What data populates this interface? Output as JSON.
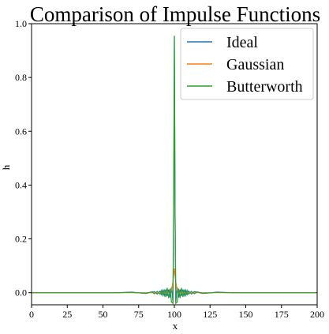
{
  "chart_data": {
    "type": "line",
    "title": "Comparison of Impulse Functions",
    "xlabel": "x",
    "ylabel": "h",
    "xlim": [
      0,
      200
    ],
    "ylim": [
      -0.045,
      1.0
    ],
    "xticks": [
      0,
      25,
      50,
      75,
      100,
      125,
      150,
      175,
      200
    ],
    "yticks": [
      0.0,
      0.2,
      0.4,
      0.6,
      0.8,
      1.0
    ],
    "xtick_labels": [
      "0",
      "25",
      "50",
      "75",
      "100",
      "125",
      "150",
      "175",
      "200"
    ],
    "ytick_labels": [
      "0.0",
      "0.2",
      "0.4",
      "0.6",
      "0.8",
      "1.0"
    ],
    "grid": false,
    "legend_position": "top-right",
    "series": [
      {
        "name": "Ideal",
        "color": "#1f77b4",
        "x": [
          0,
          60,
          70,
          80,
          86,
          88,
          90,
          91,
          92,
          93,
          94,
          95,
          96,
          97,
          98,
          99,
          99.5,
          100,
          100.5,
          101,
          102,
          103,
          104,
          105,
          106,
          107,
          108,
          109,
          110,
          112,
          114,
          120,
          130,
          140,
          200
        ],
        "y": [
          0,
          0,
          0.002,
          -0.003,
          0.004,
          -0.005,
          0.006,
          -0.007,
          0.009,
          -0.01,
          0.012,
          -0.012,
          0.012,
          -0.018,
          0.02,
          -0.035,
          0.3,
          0.955,
          0.3,
          -0.035,
          0.02,
          -0.018,
          0.012,
          -0.012,
          0.012,
          -0.01,
          0.009,
          -0.007,
          0.006,
          -0.005,
          0.004,
          -0.003,
          0.002,
          0,
          0
        ]
      },
      {
        "name": "Gaussian",
        "color": "#ff7f0e",
        "x": [
          0,
          95,
          97,
          98,
          99,
          100,
          101,
          102,
          103,
          105,
          200
        ],
        "y": [
          0,
          0,
          0.002,
          0.01,
          0.04,
          0.09,
          0.04,
          0.01,
          0.002,
          0,
          0
        ]
      },
      {
        "name": "Butterworth",
        "color": "#2ca02c",
        "x": [
          0,
          60,
          70,
          80,
          84,
          86,
          88,
          90,
          91,
          92,
          93,
          94,
          95,
          96,
          97,
          98,
          99,
          99.5,
          100,
          100.5,
          101,
          102,
          103,
          104,
          105,
          106,
          107,
          108,
          109,
          110,
          112,
          114,
          116,
          120,
          130,
          140,
          200
        ],
        "y": [
          0,
          0,
          0.001,
          -0.002,
          0.003,
          -0.004,
          0.005,
          -0.006,
          0.008,
          -0.01,
          0.012,
          -0.016,
          0.018,
          -0.02,
          0.015,
          -0.035,
          -0.04,
          0.3,
          0.955,
          0.3,
          -0.04,
          -0.035,
          0.015,
          -0.02,
          0.018,
          -0.016,
          0.012,
          -0.01,
          0.008,
          -0.006,
          0.005,
          -0.004,
          0.003,
          -0.002,
          0.001,
          0,
          0
        ]
      }
    ]
  }
}
